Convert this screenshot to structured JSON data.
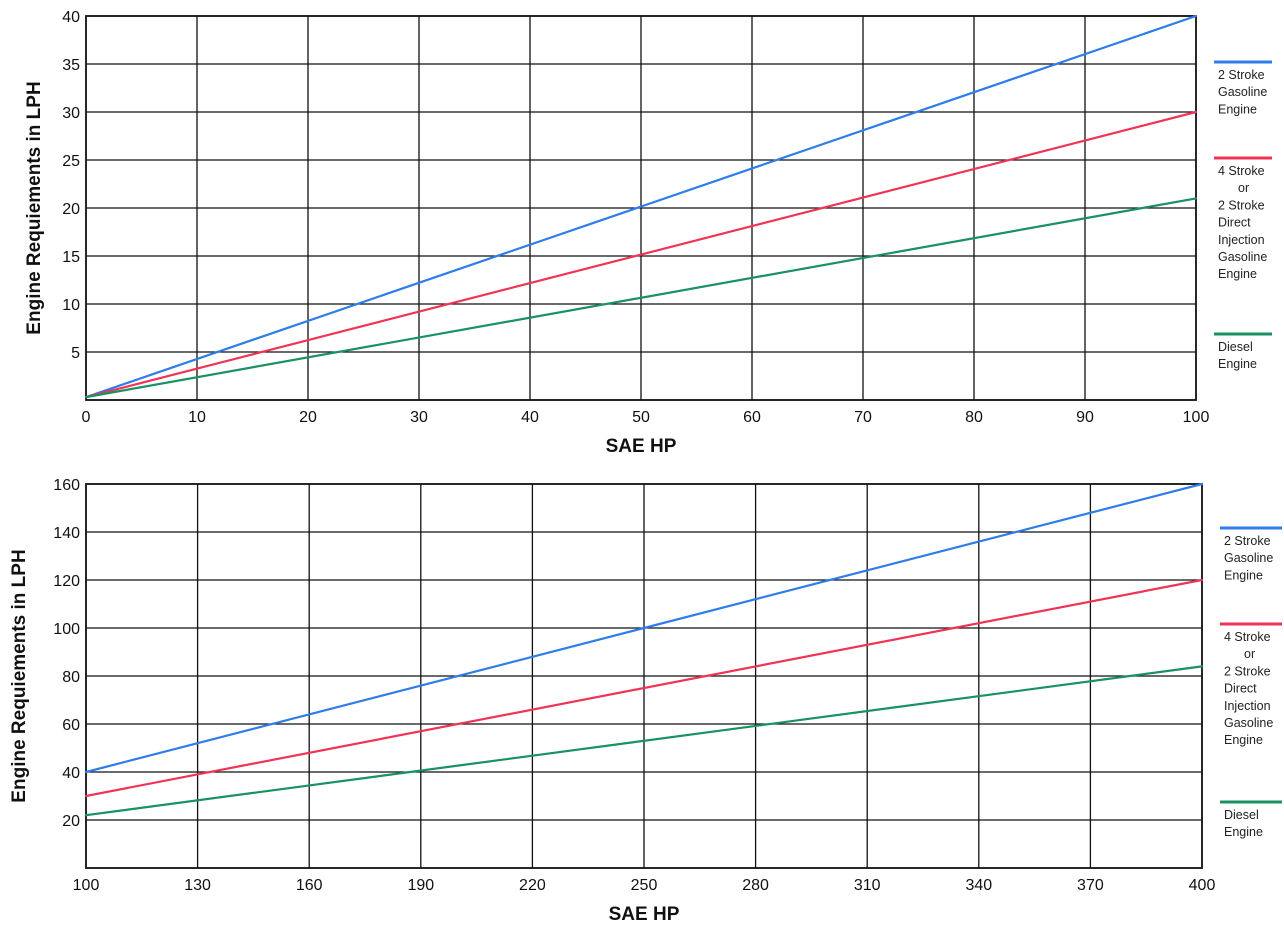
{
  "chart_data": [
    {
      "type": "line",
      "xlabel": "SAE HP",
      "ylabel": "Engine Requiements in LPH",
      "xlim": [
        0,
        100
      ],
      "ylim": [
        0,
        40
      ],
      "x_ticks": [
        0,
        10,
        20,
        30,
        40,
        50,
        60,
        70,
        80,
        90,
        100
      ],
      "y_ticks": [
        5,
        10,
        15,
        20,
        25,
        30,
        35,
        40
      ],
      "grid": true,
      "legend_position": "right",
      "series": [
        {
          "name": "2 Stroke Gasoline Engine",
          "legend_lines": [
            "2 Stroke",
            "Gasoline",
            "Engine"
          ],
          "color": "#2f7de8",
          "x": [
            0,
            100
          ],
          "y": [
            0.3,
            40
          ]
        },
        {
          "name": "4 Stroke or 2 Stroke Direct Injection Gasoline Engine",
          "legend_lines": [
            "4 Stroke",
            "or",
            "2 Stroke",
            "Direct",
            "Injection",
            "Gasoline",
            "Engine"
          ],
          "color": "#f03456",
          "x": [
            0,
            100
          ],
          "y": [
            0.3,
            30
          ]
        },
        {
          "name": "Diesel Engine",
          "legend_lines": [
            "Diesel",
            "Engine"
          ],
          "color": "#1a9160",
          "x": [
            0,
            100
          ],
          "y": [
            0.3,
            21
          ]
        }
      ]
    },
    {
      "type": "line",
      "xlabel": "SAE HP",
      "ylabel": "Engine Requiements in LPH",
      "xlim": [
        100,
        400
      ],
      "ylim": [
        0,
        160
      ],
      "x_ticks": [
        100,
        130,
        160,
        190,
        220,
        250,
        280,
        310,
        340,
        370,
        400
      ],
      "y_ticks": [
        20,
        40,
        60,
        80,
        100,
        120,
        140,
        160
      ],
      "grid": true,
      "legend_position": "right",
      "series": [
        {
          "name": "2 Stroke Gasoline Engine",
          "legend_lines": [
            "2 Stroke",
            "Gasoline",
            "Engine"
          ],
          "color": "#2f7de8",
          "x": [
            100,
            400
          ],
          "y": [
            40,
            160
          ]
        },
        {
          "name": "4 Stroke or 2 Stroke Direct Injection Gasoline Engine",
          "legend_lines": [
            "4 Stroke",
            "or",
            "2 Stroke",
            "Direct",
            "Injection",
            "Gasoline",
            "Engine"
          ],
          "color": "#f03456",
          "x": [
            100,
            400
          ],
          "y": [
            30,
            120
          ]
        },
        {
          "name": "Diesel Engine",
          "legend_lines": [
            "Diesel",
            "Engine"
          ],
          "color": "#1a9160",
          "x": [
            100,
            400
          ],
          "y": [
            22,
            84
          ]
        }
      ]
    }
  ]
}
